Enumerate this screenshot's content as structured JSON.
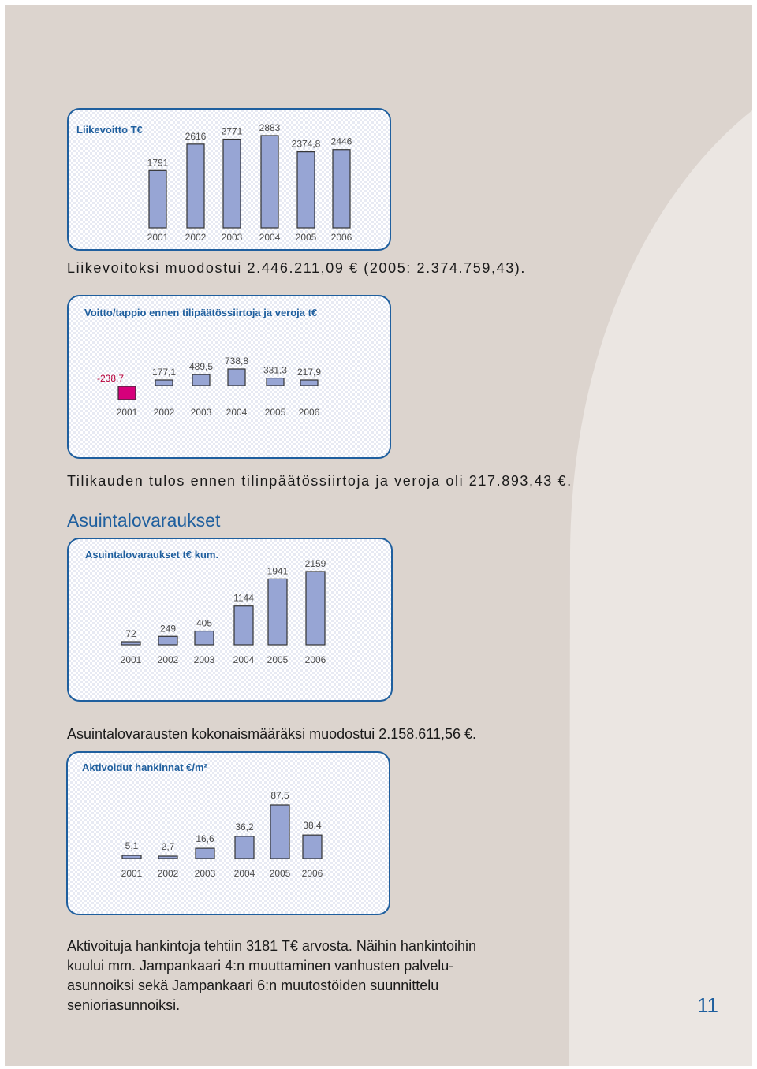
{
  "page": {
    "number": "11",
    "section_heading": "Asuintalovaraukset",
    "text_operating_profit": "Liikevoitoksi muodostui 2.446.211,09 € (2005: 2.374.759,43).",
    "text_result_before": "Tilikauden tulos ennen tilinpäätössiirtoja ja veroja oli 217.893,43 €.",
    "text_reserves_total": "Asuintalovarausten kokonaismääräksi muodostui 2.158.611,56 €.",
    "paragraph_lines": [
      "Aktivoituja hankintoja tehtiin 3181 T€ arvosta. Näihin hankintoihin",
      "kuului mm. Jampankaari 4:n muuttaminen vanhusten palvelu-",
      "asunnoiksi sekä Jampankaari 6:n muutostöiden suunnittelu",
      "senioriasunnoiksi."
    ]
  },
  "colors": {
    "accent": "#1f5f9e",
    "bar_fill": "#97a5d4",
    "bar_negative": "#d6007b",
    "label": "#4a4a4a",
    "background": "#dcd4ce"
  },
  "chart_data": [
    {
      "type": "bar",
      "title": "Liikevoitto T€",
      "categories": [
        "2001",
        "2002",
        "2003",
        "2004",
        "2005",
        "2006"
      ],
      "values": [
        1791,
        2616,
        2771,
        2883,
        2374.8,
        2446
      ],
      "value_labels": [
        "1791",
        "2616",
        "2771",
        "2883",
        "2374,8",
        "2446"
      ],
      "negative_colors": false
    },
    {
      "type": "bar",
      "title": "Voitto/tappio ennen tilipäätössiirtoja ja veroja t€",
      "categories": [
        "2001",
        "2002",
        "2003",
        "2004",
        "2005",
        "2006"
      ],
      "values": [
        -238.7,
        177.1,
        489.5,
        738.8,
        331.3,
        217.9
      ],
      "value_labels": [
        "-238,7",
        "177,1",
        "489,5",
        "738,8",
        "331,3",
        "217,9"
      ],
      "negative_colors": true
    },
    {
      "type": "bar",
      "title": "Asuintalovaraukset t€ kum.",
      "categories": [
        "2001",
        "2002",
        "2003",
        "2004",
        "2005",
        "2006"
      ],
      "values": [
        72,
        249,
        405,
        1144,
        1941,
        2159
      ],
      "value_labels": [
        "72",
        "249",
        "405",
        "1144",
        "1941",
        "2159"
      ],
      "negative_colors": false
    },
    {
      "type": "bar",
      "title": "Aktivoidut hankinnat €/m²",
      "categories": [
        "2001",
        "2002",
        "2003",
        "2004",
        "2005",
        "2006"
      ],
      "values": [
        5.1,
        2.7,
        16.6,
        36.2,
        87.5,
        38.4
      ],
      "value_labels": [
        "5,1",
        "2,7",
        "16,6",
        "36,2",
        "87,5",
        "38,4"
      ],
      "negative_colors": false
    }
  ]
}
